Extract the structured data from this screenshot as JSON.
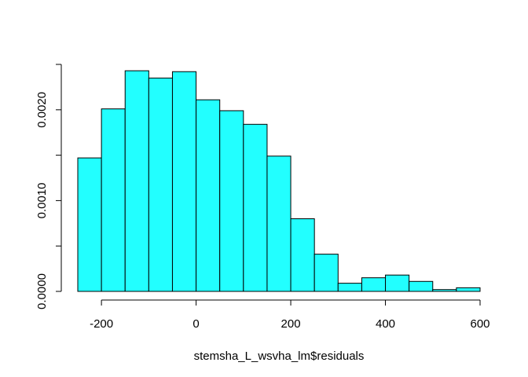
{
  "chart_data": {
    "type": "bar",
    "subtype": "histogram",
    "title": "",
    "xlabel": "stemsha_L_wsvha_lm$residuals",
    "ylabel": "",
    "bin_edges": [
      -250,
      -200,
      -150,
      -100,
      -50,
      0,
      50,
      100,
      150,
      200,
      250,
      300,
      350,
      400,
      450,
      500,
      550,
      600
    ],
    "values": [
      0.00147,
      0.00201,
      0.00243,
      0.00235,
      0.00242,
      0.00211,
      0.00199,
      0.00184,
      0.00149,
      0.0008,
      0.00041,
      9e-05,
      0.00015,
      0.00018,
      0.00011,
      2e-05,
      4e-05
    ],
    "xticks": [
      -200,
      0,
      200,
      400,
      600
    ],
    "xtick_labels": [
      "-200",
      "0",
      "200",
      "400",
      "600"
    ],
    "yticks": [
      0,
      0.0005,
      0.001,
      0.0015,
      0.002,
      0.0025
    ],
    "ytick_labels": [
      "0.0000",
      "",
      "0.0010",
      "",
      "0.0020",
      ""
    ],
    "xlim": [
      -250,
      600
    ],
    "ylim": [
      0,
      0.0025
    ],
    "bar_color": "#22FFFF",
    "edge_color": "#000000",
    "grid": false,
    "legend": "none"
  }
}
